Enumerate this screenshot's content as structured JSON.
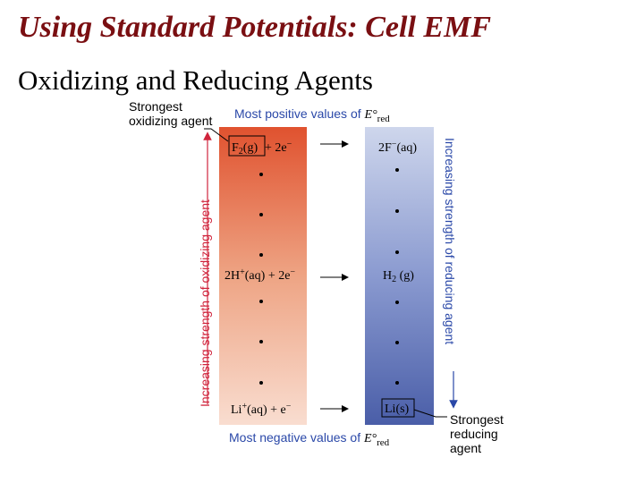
{
  "slide": {
    "title": "Using Standard Potentials: Cell EMF",
    "subtitle": "Oxidizing and Reducing Agents"
  },
  "diagram": {
    "top_label_prefix": "Most positive values of ",
    "bottom_label_prefix": "Most negative values of ",
    "potential_symbol": "E°",
    "potential_subscript": "red",
    "strongest_oxidizing_line1": "Strongest",
    "strongest_oxidizing_line2": "oxidizing agent",
    "strongest_reducing_line1": "Strongest",
    "strongest_reducing_line2": "reducing",
    "strongest_reducing_line3": "agent",
    "left_axis_label": "Increasing strength of oxidizing agent",
    "right_axis_label": "Increasing strength of reducing agent",
    "reactions": {
      "top": {
        "oxidant_species": "F",
        "oxidant_sub": "2",
        "oxidant_state": "(g)",
        "electrons": " + 2e",
        "electron_sup": "−",
        "reductant_species": "2F",
        "reductant_sup": "−",
        "reductant_state": "(aq)"
      },
      "middle": {
        "oxidant_species": "2H",
        "oxidant_sup": "+",
        "oxidant_state": "(aq)",
        "electrons": " + 2e",
        "electron_sup": "−",
        "reductant_species": "H",
        "reductant_sub": "2",
        "reductant_state": " (g)"
      },
      "bottom": {
        "oxidant_species": "Li",
        "oxidant_sup": "+",
        "oxidant_state": "(aq)",
        "electrons": " + e",
        "electron_sup": "−",
        "reductant_text": "Li(s)"
      }
    },
    "colors": {
      "oxidant_gradient_top": "#e0522f",
      "oxidant_gradient_bottom": "#f9ddd0",
      "reductant_gradient_top": "#ced6ec",
      "reductant_gradient_bottom": "#4a5ea8",
      "accent_red": "#d0243c",
      "accent_blue": "#2a48a8",
      "title_color": "#7a0f12"
    }
  }
}
